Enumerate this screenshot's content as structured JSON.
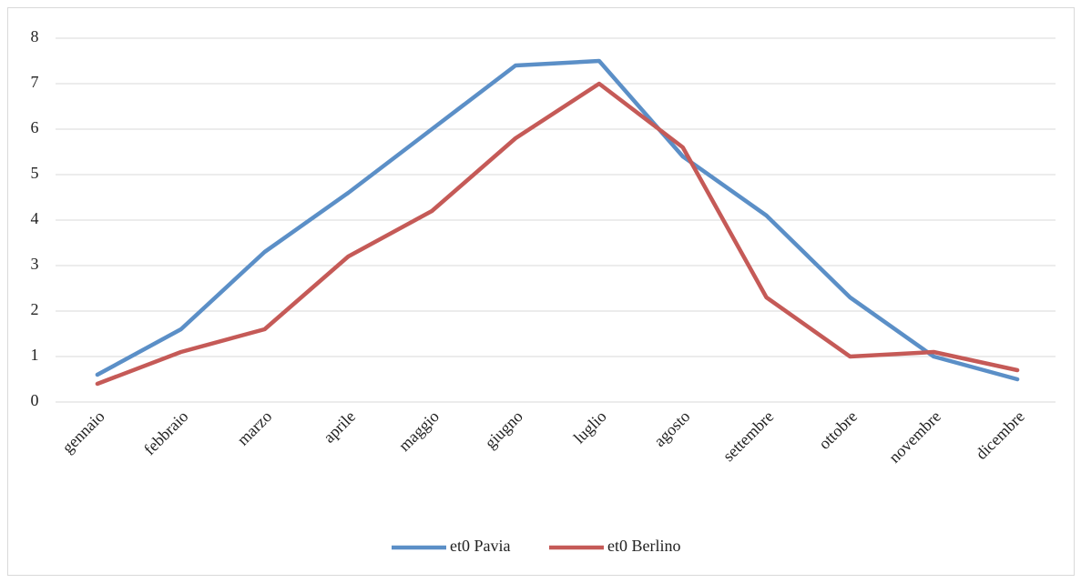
{
  "chart_data": {
    "type": "line",
    "categories": [
      "gennaio",
      "febbraio",
      "marzo",
      "aprile",
      "maggio",
      "giugno",
      "luglio",
      "agosto",
      "settembre",
      "ottobre",
      "novembre",
      "dicembre"
    ],
    "series": [
      {
        "name": "et0 Pavia",
        "color": "#5b8fc7",
        "values": [
          0.6,
          1.6,
          3.3,
          4.6,
          6.0,
          7.4,
          7.5,
          5.4,
          4.1,
          2.3,
          1.0,
          0.5
        ]
      },
      {
        "name": "et0 Berlino",
        "color": "#c55a57",
        "values": [
          0.4,
          1.1,
          1.6,
          3.2,
          4.2,
          5.8,
          7.0,
          5.6,
          2.3,
          1.0,
          1.1,
          0.7
        ]
      }
    ],
    "ylim": [
      0,
      8
    ],
    "yticks": [
      0,
      1,
      2,
      3,
      4,
      5,
      6,
      7,
      8
    ],
    "grid": true,
    "legend": "bottom"
  }
}
